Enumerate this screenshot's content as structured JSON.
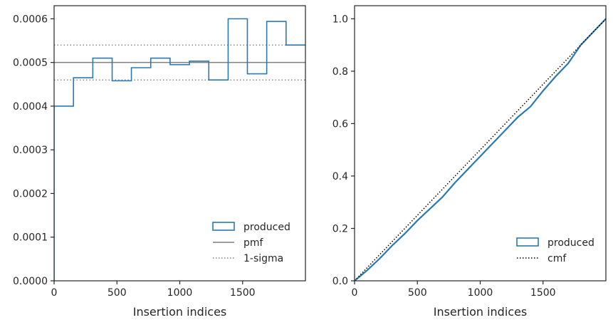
{
  "chart_data": [
    {
      "type": "histogram-step",
      "xlabel": "Insertion indices",
      "ylabel": "",
      "xlim": [
        0,
        2000
      ],
      "ylim": [
        0,
        0.00063
      ],
      "xticks": [
        0,
        500,
        1000,
        1500
      ],
      "xtick_labels": [
        "0",
        "500",
        "1000",
        "1500"
      ],
      "yticks": [
        0,
        0.0001,
        0.0002,
        0.0003,
        0.0004,
        0.0005,
        0.0006
      ],
      "ytick_labels": [
        "0.0000",
        "0.0001",
        "0.0002",
        "0.0003",
        "0.0004",
        "0.0005",
        "0.0006"
      ],
      "series": [
        {
          "name": "produced",
          "color": "#2a7ab0",
          "bin_edges": [
            0,
            154,
            308,
            462,
            615,
            769,
            923,
            1077,
            1231,
            1385,
            1538,
            1692,
            1846,
            2000
          ],
          "values": [
            0.0004,
            0.000465,
            0.00051,
            0.000458,
            0.000488,
            0.00051,
            0.000495,
            0.000503,
            0.00046,
            0.0006,
            0.000474,
            0.000594,
            0.00054
          ]
        }
      ],
      "reference_lines": [
        {
          "name": "pmf",
          "value": 0.0005,
          "style": "solid",
          "color": "#7f7f7f"
        },
        {
          "name": "1-sigma",
          "values": [
            0.00046,
            0.00054
          ],
          "style": "dotted",
          "color": "#7f7f7f"
        }
      ],
      "legend": {
        "placement": "lower-right",
        "entries": [
          {
            "label": "produced",
            "kind": "patch",
            "color": "#2a7ab0"
          },
          {
            "label": "pmf",
            "kind": "line-solid",
            "color": "#7f7f7f"
          },
          {
            "label": "1-sigma",
            "kind": "line-dotted",
            "color": "#7f7f7f"
          }
        ]
      },
      "grid": false
    },
    {
      "type": "line",
      "xlabel": "Insertion indices",
      "ylabel": "",
      "xlim": [
        0,
        2000
      ],
      "ylim": [
        0,
        1.05
      ],
      "xticks": [
        0,
        500,
        1000,
        1500
      ],
      "xtick_labels": [
        "0",
        "500",
        "1000",
        "1500"
      ],
      "yticks": [
        0,
        0.2,
        0.4,
        0.6,
        0.8,
        1.0
      ],
      "ytick_labels": [
        "0.0",
        "0.2",
        "0.4",
        "0.6",
        "0.8",
        "1.0"
      ],
      "series": [
        {
          "name": "produced",
          "color": "#2a7ab0",
          "style": "solid",
          "x": [
            0,
            100,
            200,
            300,
            400,
            500,
            600,
            700,
            800,
            900,
            1000,
            1100,
            1200,
            1300,
            1400,
            1500,
            1600,
            1700,
            1800,
            1900,
            2000
          ],
          "values": [
            0,
            0.04,
            0.085,
            0.135,
            0.18,
            0.23,
            0.275,
            0.32,
            0.375,
            0.425,
            0.475,
            0.525,
            0.575,
            0.625,
            0.665,
            0.725,
            0.78,
            0.83,
            0.9,
            0.95,
            1.0
          ]
        },
        {
          "name": "cmf",
          "color": "#000000",
          "style": "dotted",
          "x": [
            0,
            2000
          ],
          "values": [
            0,
            1.0
          ]
        }
      ],
      "legend": {
        "placement": "lower-right",
        "entries": [
          {
            "label": "produced",
            "kind": "patch",
            "color": "#2a7ab0"
          },
          {
            "label": "cmf",
            "kind": "line-dotted",
            "color": "#000000"
          }
        ]
      },
      "grid": false
    }
  ]
}
